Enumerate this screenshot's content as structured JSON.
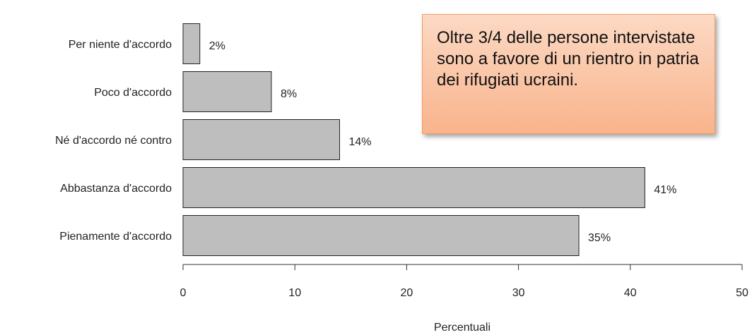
{
  "chart_data": {
    "type": "barh",
    "categories": [
      "Per niente d'accordo",
      "Poco d'accordo",
      "Né d'accordo né contro",
      "Abbastanza d'accordo",
      "Pienamente d'accordo"
    ],
    "values": [
      1.5,
      7.9,
      14,
      41.3,
      35.4
    ],
    "value_labels": [
      "2%",
      "8%",
      "14%",
      "41%",
      "35%"
    ],
    "color": "#bebebe",
    "xlim": [
      0,
      50
    ],
    "xticks": [
      0,
      10,
      20,
      30,
      40,
      50
    ],
    "xlabel": "Percentuali",
    "annotation": "Oltre 3/4 delle persone intervistate sono a favore di un rientro in patria dei rifugiati ucraini."
  }
}
